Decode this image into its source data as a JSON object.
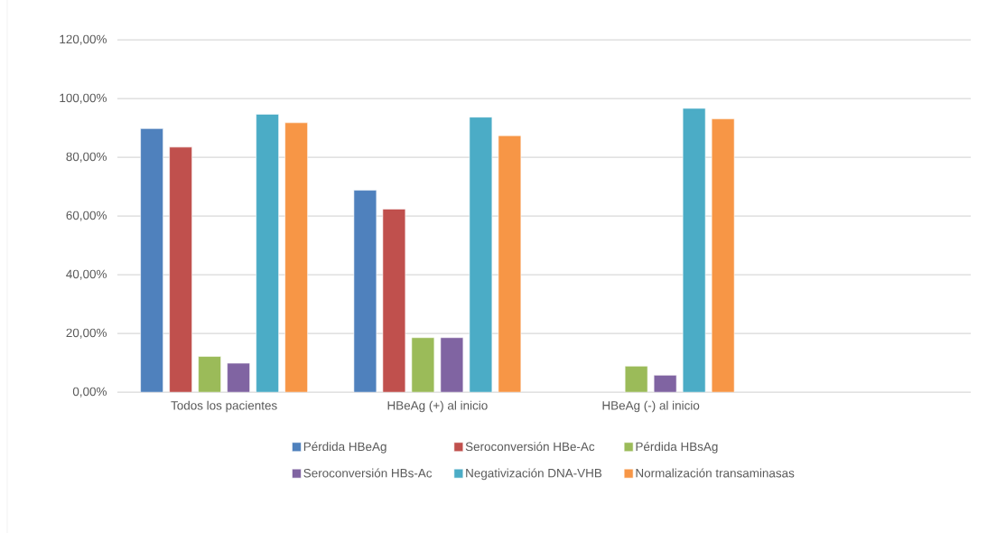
{
  "chart_data": {
    "type": "bar",
    "categories": [
      "Todos los pacientes",
      "HBeAg (+) al inicio",
      "HBeAg (-) al inicio",
      null
    ],
    "series": [
      {
        "name": "Pérdida HBeAg",
        "color": "#4f81bd",
        "values": [
          89.8,
          68.8,
          null,
          null
        ]
      },
      {
        "name": "Seroconversión HBe-Ac",
        "color": "#c0504d",
        "values": [
          83.5,
          62.4,
          null,
          null
        ]
      },
      {
        "name": "Pérdida HBsAg",
        "color": "#9bbb59",
        "values": [
          12.2,
          18.6,
          8.9,
          null
        ]
      },
      {
        "name": "Seroconversión HBs-Ac",
        "color": "#8064a2",
        "values": [
          9.9,
          18.6,
          5.8,
          null
        ]
      },
      {
        "name": "Negativización DNA-VHB",
        "color": "#4bacc6",
        "values": [
          94.7,
          93.7,
          96.7,
          null
        ]
      },
      {
        "name": "Normalización transaminasas",
        "color": "#f79646",
        "values": [
          91.8,
          87.4,
          93.1,
          null
        ]
      }
    ],
    "ylim": [
      0,
      120
    ],
    "yticks": [
      {
        "value": 0,
        "label": "0,00%"
      },
      {
        "value": 20,
        "label": "20,00%"
      },
      {
        "value": 40,
        "label": "40,00%"
      },
      {
        "value": 60,
        "label": "60,00%"
      },
      {
        "value": 80,
        "label": "80,00%"
      },
      {
        "value": 100,
        "label": "100,00%"
      },
      {
        "value": 120,
        "label": "120,00%"
      }
    ],
    "grid": "y",
    "legend": "bottom"
  }
}
